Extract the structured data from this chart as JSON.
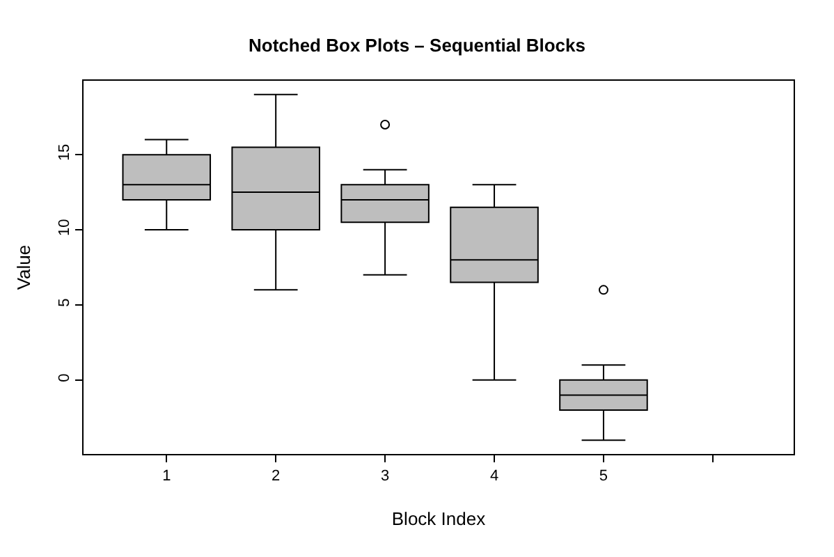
{
  "chart_data": {
    "type": "box",
    "title": "Notched Box Plots – Sequential Blocks",
    "xlabel": "Block Index",
    "ylabel": "Value",
    "categories": [
      "1",
      "2",
      "3",
      "4",
      "5",
      null
    ],
    "boxes": [
      {
        "low": 10,
        "q1": 12,
        "median": 13,
        "q3": 15,
        "high": 16
      },
      {
        "low": 6,
        "q1": 10,
        "median": 12.5,
        "q3": 15.5,
        "high": 19
      },
      {
        "low": 7,
        "q1": 10.5,
        "median": 12,
        "q3": 13,
        "high": 14,
        "outliers": [
          17
        ]
      },
      {
        "low": 0,
        "q1": 6.5,
        "median": 8,
        "q3": 11.5,
        "high": 13
      },
      {
        "low": -4,
        "q1": -2,
        "median": -1,
        "q3": 0,
        "high": 1,
        "outliers": [
          6
        ]
      },
      null
    ],
    "color": "#bebebe",
    "ylim": [
      -4.92,
      19.92
    ],
    "yticks": [
      0,
      5,
      10,
      15
    ],
    "legend": false
  }
}
